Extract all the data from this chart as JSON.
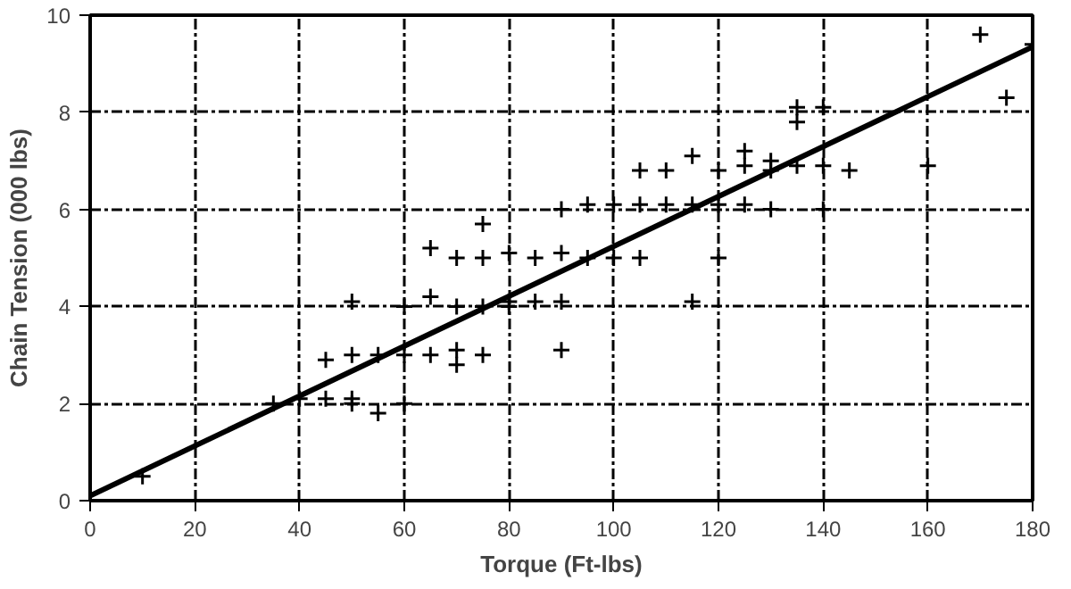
{
  "chart_data": {
    "type": "scatter",
    "xlabel": "Torque (Ft-lbs)",
    "ylabel": "Chain Tension (000 lbs)",
    "xlim": [
      0,
      180
    ],
    "ylim": [
      0,
      10
    ],
    "xticks": [
      0,
      20,
      40,
      60,
      80,
      100,
      120,
      140,
      160,
      180
    ],
    "yticks": [
      0,
      2,
      4,
      6,
      8,
      10
    ],
    "grid": true,
    "series": [
      {
        "color": "#000000",
        "marker": "cross",
        "x": [
          10,
          35,
          40,
          45,
          45,
          50,
          50,
          50,
          50,
          55,
          55,
          60,
          60,
          60,
          65,
          65,
          65,
          70,
          70,
          70,
          70,
          75,
          75,
          75,
          75,
          80,
          80,
          80,
          85,
          85,
          90,
          90,
          90,
          90,
          95,
          95,
          100,
          100,
          105,
          105,
          105,
          110,
          110,
          115,
          115,
          115,
          120,
          120,
          120,
          125,
          125,
          125,
          130,
          130,
          130,
          135,
          135,
          135,
          140,
          140,
          140,
          145,
          160,
          170,
          175,
          180
        ],
        "values": [
          0.5,
          2.0,
          2.1,
          2.9,
          2.1,
          3.0,
          2.1,
          2.0,
          4.1,
          3.0,
          1.8,
          4.0,
          3.0,
          2.0,
          5.2,
          4.2,
          3.0,
          5.0,
          4.0,
          3.1,
          2.8,
          5.7,
          5.0,
          4.0,
          3.0,
          4.1,
          5.1,
          4.0,
          5.0,
          4.1,
          6.0,
          5.1,
          4.1,
          3.1,
          6.1,
          5.0,
          6.1,
          5.0,
          6.8,
          6.1,
          5.0,
          6.8,
          6.1,
          7.1,
          6.1,
          4.1,
          6.8,
          6.1,
          5.0,
          7.2,
          6.9,
          6.1,
          7.0,
          6.8,
          6.0,
          8.1,
          7.8,
          6.9,
          8.1,
          6.9,
          6.0,
          6.8,
          6.9,
          9.6,
          8.3,
          9.4
        ]
      },
      {
        "type": "line",
        "color": "#000000",
        "x": [
          0,
          180
        ],
        "values": [
          0.1,
          9.35
        ]
      }
    ]
  }
}
